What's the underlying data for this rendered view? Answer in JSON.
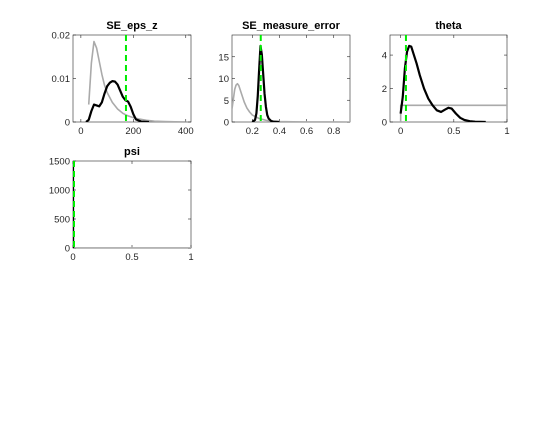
{
  "figure": {
    "colors": {
      "prior": "#aaaaaa",
      "posterior": "#000000",
      "mode": "#00ee00",
      "axis": "#262626"
    }
  },
  "chart_data": [
    {
      "type": "line",
      "title": "SE_eps_z",
      "xlim": [
        -30,
        420
      ],
      "ylim": [
        0,
        0.02
      ],
      "xticks": [
        0,
        200,
        400
      ],
      "xtick_labels": [
        "0",
        "200",
        "400"
      ],
      "yticks": [
        0,
        0.01,
        0.02
      ],
      "ytick_labels": [
        "0",
        "0.01",
        "0.02"
      ],
      "grid": false,
      "series": [
        {
          "role": "prior",
          "x": [
            30,
            40,
            50,
            60,
            70,
            80,
            90,
            100,
            120,
            140,
            160,
            180,
            200,
            220,
            250,
            280,
            320,
            360,
            400
          ],
          "y": [
            0.004,
            0.0135,
            0.0185,
            0.017,
            0.014,
            0.011,
            0.0085,
            0.0068,
            0.0045,
            0.003,
            0.002,
            0.0014,
            0.001,
            0.0007,
            0.0004,
            0.0002,
            0.0001,
            5e-05,
            2e-05
          ]
        },
        {
          "role": "posterior",
          "x": [
            20,
            30,
            40,
            50,
            60,
            70,
            80,
            90,
            100,
            110,
            120,
            130,
            140,
            150,
            160,
            170,
            180,
            190,
            200,
            210,
            230,
            260
          ],
          "y": [
            0,
            0.0005,
            0.0025,
            0.004,
            0.0038,
            0.0036,
            0.0045,
            0.0065,
            0.0082,
            0.009,
            0.0094,
            0.0093,
            0.0086,
            0.0072,
            0.0058,
            0.005,
            0.0047,
            0.0035,
            0.0018,
            0.0006,
            0.0001,
            0
          ]
        }
      ],
      "mode_line": 172
    },
    {
      "type": "line",
      "title": "SE_measure_error",
      "xlim": [
        0.05,
        0.92
      ],
      "ylim": [
        0,
        20
      ],
      "xticks": [
        0.2,
        0.4,
        0.6,
        0.8
      ],
      "xtick_labels": [
        "0.2",
        "0.4",
        "0.6",
        "0.8"
      ],
      "yticks": [
        0,
        5,
        10,
        15
      ],
      "ytick_labels": [
        "0",
        "5",
        "10",
        "15"
      ],
      "grid": false,
      "series": [
        {
          "role": "prior",
          "x": [
            0.05,
            0.07,
            0.08,
            0.09,
            0.1,
            0.12,
            0.14,
            0.16,
            0.18,
            0.2,
            0.25,
            0.3,
            0.35,
            0.4,
            0.5,
            0.6,
            0.7,
            0.8,
            0.92
          ],
          "y": [
            3.0,
            7.5,
            8.5,
            8.8,
            8.4,
            6.5,
            4.6,
            3.2,
            2.3,
            1.6,
            0.8,
            0.4,
            0.2,
            0.1,
            0.04,
            0.02,
            0.01,
            0.005,
            0.002
          ]
        },
        {
          "role": "posterior",
          "x": [
            0.2,
            0.22,
            0.23,
            0.24,
            0.25,
            0.26,
            0.27,
            0.28,
            0.29,
            0.3,
            0.31,
            0.32,
            0.34,
            0.36,
            0.4
          ],
          "y": [
            0,
            0.5,
            2.0,
            6.0,
            12.0,
            17.5,
            15.5,
            11.0,
            6.5,
            3.5,
            1.6,
            0.8,
            0.2,
            0.05,
            0
          ]
        }
      ],
      "mode_line": 0.262
    },
    {
      "type": "line",
      "title": "theta",
      "xlim": [
        -0.1,
        1.0
      ],
      "ylim": [
        0,
        5.2
      ],
      "xticks": [
        0,
        0.5,
        1
      ],
      "xtick_labels": [
        "0",
        "0.5",
        "1"
      ],
      "yticks": [
        0,
        2,
        4
      ],
      "ytick_labels": [
        "0",
        "2",
        "4"
      ],
      "grid": false,
      "series": [
        {
          "role": "prior",
          "x": [
            0,
            0.001,
            0.999,
            1.0
          ],
          "y": [
            0,
            1,
            1,
            1
          ]
        },
        {
          "role": "posterior",
          "x": [
            0.0,
            0.02,
            0.04,
            0.06,
            0.08,
            0.1,
            0.12,
            0.15,
            0.18,
            0.22,
            0.26,
            0.3,
            0.34,
            0.38,
            0.42,
            0.45,
            0.48,
            0.52,
            0.56,
            0.6,
            0.65,
            0.7,
            0.75,
            0.8
          ],
          "y": [
            0.5,
            1.5,
            3.2,
            4.2,
            4.55,
            4.5,
            4.1,
            3.5,
            2.8,
            2.0,
            1.4,
            1.0,
            0.7,
            0.6,
            0.75,
            0.85,
            0.8,
            0.5,
            0.25,
            0.12,
            0.05,
            0.02,
            0.01,
            0
          ]
        }
      ],
      "mode_line": 0.05
    },
    {
      "type": "line",
      "title": "psi",
      "xlim": [
        0,
        1
      ],
      "ylim": [
        0,
        1500
      ],
      "xticks": [
        0,
        0.5,
        1
      ],
      "xtick_labels": [
        "0",
        "0.5",
        "1"
      ],
      "yticks": [
        0,
        500,
        1000,
        1500
      ],
      "ytick_labels": [
        "0",
        "500",
        "1000",
        "1500"
      ],
      "grid": false,
      "series": [
        {
          "role": "prior",
          "x": [
            0,
            0.002,
            1.0
          ],
          "y": [
            1500,
            1,
            1
          ]
        },
        {
          "role": "posterior",
          "x": [
            0,
            0,
            0.001
          ],
          "y": [
            0,
            1500,
            0
          ]
        }
      ],
      "mode_line": 0.0
    }
  ]
}
